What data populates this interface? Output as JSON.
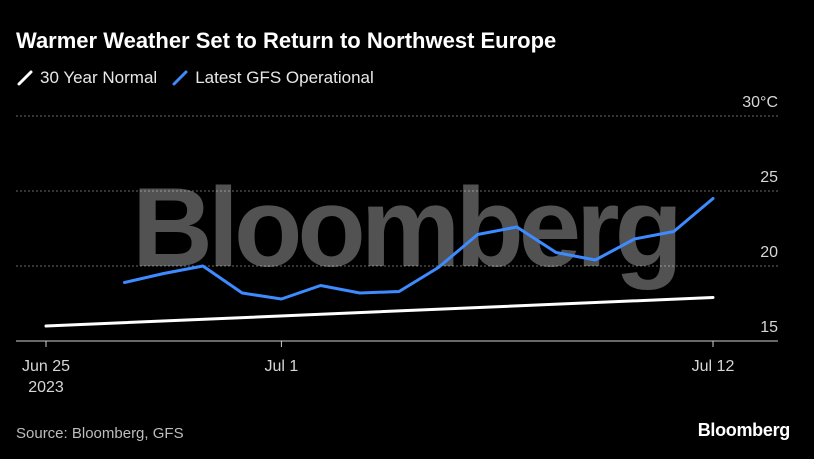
{
  "title": "Warmer Weather Set to Return to Northwest Europe",
  "legend": [
    {
      "name": "30 Year Normal",
      "color": "#ffffff"
    },
    {
      "name": "Latest GFS Operational",
      "color": "#3d8bff"
    }
  ],
  "source": "Source: Bloomberg, GFS",
  "brand": "Bloomberg",
  "watermark": "Bloomberg",
  "chart_data": {
    "type": "line",
    "title": "Warmer Weather Set to Return to Northwest Europe",
    "x_ticks": [
      {
        "day": 0,
        "label": "Jun 25",
        "sublabel": "2023"
      },
      {
        "day": 6,
        "label": "Jul 1",
        "sublabel": ""
      },
      {
        "day": 17,
        "label": "Jul 12",
        "sublabel": ""
      }
    ],
    "xlim": [
      0,
      17
    ],
    "y_ticks": [
      {
        "value": 15,
        "label": "15"
      },
      {
        "value": 20,
        "label": "20"
      },
      {
        "value": 25,
        "label": "25"
      },
      {
        "value": 30,
        "label": "30°C"
      }
    ],
    "ylim": [
      15,
      30
    ],
    "grid": true,
    "legend_position": "top-left",
    "series": [
      {
        "name": "30 Year Normal",
        "color": "#ffffff",
        "x": [
          0,
          17
        ],
        "y": [
          16.0,
          17.9
        ]
      },
      {
        "name": "Latest GFS Operational",
        "color": "#3d8bff",
        "x": [
          2,
          3,
          4,
          5,
          6,
          7,
          8,
          9,
          10,
          11,
          12,
          13,
          14,
          15,
          16,
          17
        ],
        "y": [
          18.9,
          19.5,
          20.0,
          18.2,
          17.8,
          18.7,
          18.2,
          18.3,
          19.9,
          22.1,
          22.6,
          20.9,
          20.4,
          21.8,
          22.3,
          24.5
        ]
      }
    ]
  }
}
